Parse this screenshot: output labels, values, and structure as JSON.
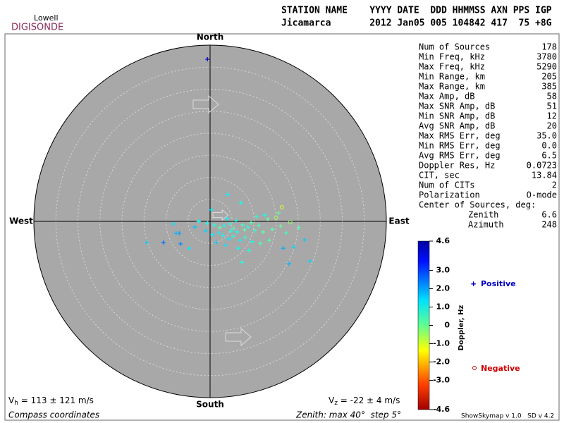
{
  "logo": {
    "top": "Lowell",
    "bottom": "DIGISONDE"
  },
  "header": {
    "line1": "STATION NAME    YYYY DATE  DDD HHMMSS AXN PPS IGP",
    "line2": "Jicamarca       2012 Jan05 005 104842 417  75 +8G"
  },
  "directions": {
    "north": "North",
    "south": "South",
    "east": "East",
    "west": "West"
  },
  "stats": [
    [
      "Num of Sources",
      "178"
    ],
    [
      "Min Freq, kHz",
      "3780"
    ],
    [
      "Max Freq, kHz",
      "5290"
    ],
    [
      "Min Range, km",
      "205"
    ],
    [
      "Max Range, km",
      "385"
    ],
    [
      "Max Amp, dB",
      "58"
    ],
    [
      "Max SNR Amp, dB",
      "51"
    ],
    [
      "Min SNR Amp, dB",
      "12"
    ],
    [
      "Avg SNR Amp, dB",
      "20"
    ],
    [
      "Max RMS Err, deg",
      "35.0"
    ],
    [
      "Min RMS Err, deg",
      "0.0"
    ],
    [
      "Avg RMS Err, deg",
      "6.5"
    ],
    [
      "Doppler Res, Hz",
      "0.0723"
    ],
    [
      "CIT, sec",
      "13.84"
    ],
    [
      "Num of CITs",
      "2"
    ],
    [
      "Polarization",
      "O-mode"
    ]
  ],
  "center": {
    "title": "Center of Sources, deg:",
    "rows": [
      [
        "Zenith",
        "6.6"
      ],
      [
        "Azimuth",
        "248"
      ]
    ]
  },
  "colorbar": {
    "title": "Doppler, Hz",
    "lim": [
      -4.6,
      4.6
    ],
    "ticks": [
      4.6,
      {
        "value": 3,
        "label": "3.0"
      },
      {
        "value": 2,
        "label": "2.0"
      },
      {
        "value": 1,
        "label": "1.0"
      },
      0,
      {
        "value": -1,
        "label": "-1.0"
      },
      {
        "value": -2,
        "label": "-2.0"
      },
      {
        "value": -3,
        "label": "-3.0"
      },
      -4.6
    ]
  },
  "legend": {
    "positive": "Positive",
    "negative": "Negative"
  },
  "skymap": {
    "zenith_max": 40,
    "zenith_step": 5,
    "sources": [
      [
        -0.6,
        36.8,
        4.0
      ],
      [
        4.0,
        6.1,
        1.2
      ],
      [
        0.3,
        2.6,
        1.3
      ],
      [
        7.0,
        4.2,
        1.0
      ],
      [
        16.3,
        3.2,
        -0.8
      ],
      [
        15.5,
        1.9,
        0.3
      ],
      [
        -8.3,
        -0.6,
        1.4
      ],
      [
        -7.7,
        -2.7,
        1.8
      ],
      [
        -7.0,
        -2.7,
        2.0
      ],
      [
        -14.4,
        -4.8,
        1.6
      ],
      [
        -10.6,
        -4.8,
        2.5
      ],
      [
        -6.7,
        -5.1,
        2.2
      ],
      [
        -4.8,
        -6.1,
        1.3
      ],
      [
        17.9,
        -9.6,
        1.8
      ],
      [
        22.7,
        -9.0,
        1.5
      ],
      [
        21.4,
        -4.2,
        1.6
      ],
      [
        16.6,
        -6.1,
        1.9
      ],
      [
        7.2,
        -9.3,
        0.9
      ],
      [
        -2.6,
        0,
        1.2
      ],
      [
        -0.6,
        -0.4,
        1.0
      ],
      [
        1,
        -0.8,
        0.9
      ],
      [
        2.2,
        -1.4,
        0.4
      ],
      [
        3.2,
        -1.0,
        1.1
      ],
      [
        4.5,
        -0.6,
        0.8
      ],
      [
        5.4,
        -1.6,
        0.5
      ],
      [
        6.1,
        -2.4,
        1.0
      ],
      [
        7.4,
        -0.8,
        0.6
      ],
      [
        8.6,
        -1.3,
        0.9
      ],
      [
        9.3,
        -0.3,
        0.4
      ],
      [
        10.2,
        -2.1,
        0.7
      ],
      [
        11.0,
        -0.9,
        0.5
      ],
      [
        12.0,
        -2.4,
        0.3
      ],
      [
        13.1,
        0.5,
        0.2
      ],
      [
        14.1,
        -1.8,
        0.4
      ],
      [
        15.0,
        0.8,
        -0.3
      ],
      [
        16.0,
        -1.1,
        0.2
      ],
      [
        17.3,
        -2.6,
        0.6
      ],
      [
        18.2,
        -0.2,
        -0.2
      ],
      [
        10.6,
        1.1,
        0.8
      ],
      [
        12.4,
        1.4,
        1.0
      ],
      [
        2.9,
        -3.2,
        1.1
      ],
      [
        4.2,
        -4.0,
        1.3
      ],
      [
        5.3,
        -3.4,
        0.9
      ],
      [
        6.8,
        -4.3,
        1.2
      ],
      [
        8.0,
        -3.6,
        0.7
      ],
      [
        9.5,
        -4.6,
        1.0
      ],
      [
        3.5,
        -5.4,
        1.4
      ],
      [
        1.4,
        -4.8,
        1.6
      ],
      [
        0.5,
        -3.0,
        1.3
      ],
      [
        -1.0,
        -2.2,
        1.5
      ],
      [
        6.4,
        -6.1,
        1.1
      ],
      [
        8.8,
        -6.6,
        0.9
      ],
      [
        11.4,
        -5.0,
        0.5
      ],
      [
        13.5,
        -4.3,
        0.4
      ],
      [
        4.8,
        -2.2,
        1.0
      ],
      [
        7.8,
        -1.9,
        0.3
      ],
      [
        3.8,
        0.6,
        1.2
      ],
      [
        5.9,
        0.2,
        0.9
      ],
      [
        2.0,
        -2.6,
        1.2
      ],
      [
        -3.5,
        -1.3,
        1.7
      ],
      [
        20.1,
        -1.4,
        0.4
      ],
      [
        19.0,
        -5.8,
        1.5
      ]
    ]
  },
  "footer": {
    "vh": {
      "symbol": "V",
      "sub": "h",
      "text": " = 113 ± 121 m/s"
    },
    "vz": {
      "symbol": "V",
      "sub": "z",
      "text": " = -22 ± 4 m/s"
    },
    "coords": "Compass coordinates",
    "zenith": "Zenith: max 40°  step 5°",
    "version": "ShowSkymap v 1.0   SD v 4.2"
  }
}
